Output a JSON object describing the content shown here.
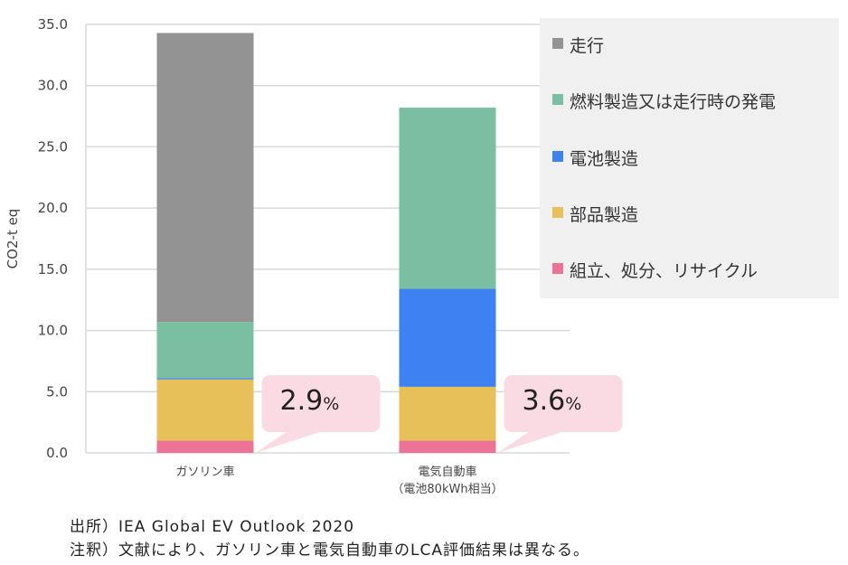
{
  "chart_data": {
    "type": "bar",
    "stacked": true,
    "ylabel": "CO2-t eq",
    "ylim": [
      0,
      35
    ],
    "yticks": [
      "0.0",
      "5.0",
      "10.0",
      "15.0",
      "20.0",
      "25.0",
      "30.0",
      "35.0"
    ],
    "grid": true,
    "legend_position": "right",
    "categories": [
      {
        "line1": "ガソリン車",
        "line2": ""
      },
      {
        "line1": "電気自動車",
        "line2": "（電池80kWh相当）"
      }
    ],
    "series": [
      {
        "name": "組立、処分、リサイクル",
        "color": "#eb7396",
        "values": [
          1.0,
          1.0
        ]
      },
      {
        "name": "部品製造",
        "color": "#e8c05a",
        "values": [
          5.0,
          4.4
        ]
      },
      {
        "name": "電池製造",
        "color": "#3d82f0",
        "values": [
          0.1,
          8.0
        ]
      },
      {
        "name": "燃料製造又は走行時の発電",
        "color": "#7bbfa2",
        "values": [
          4.6,
          14.8
        ]
      },
      {
        "name": "走行",
        "color": "#939393",
        "values": [
          23.6,
          0
        ]
      }
    ],
    "legend_order": [
      "走行",
      "燃料製造又は走行時の発電",
      "電池製造",
      "部品製造",
      "組立、処分、リサイクル"
    ],
    "annotations": [
      {
        "category": 0,
        "value": "2.9",
        "unit": "%"
      },
      {
        "category": 1,
        "value": "3.6",
        "unit": "%"
      }
    ]
  },
  "notes": {
    "source": "出所）IEA Global EV Outlook 2020",
    "remark": "注釈）文献により、ガソリン車と電気自動車のLCA評価結果は異なる。"
  }
}
